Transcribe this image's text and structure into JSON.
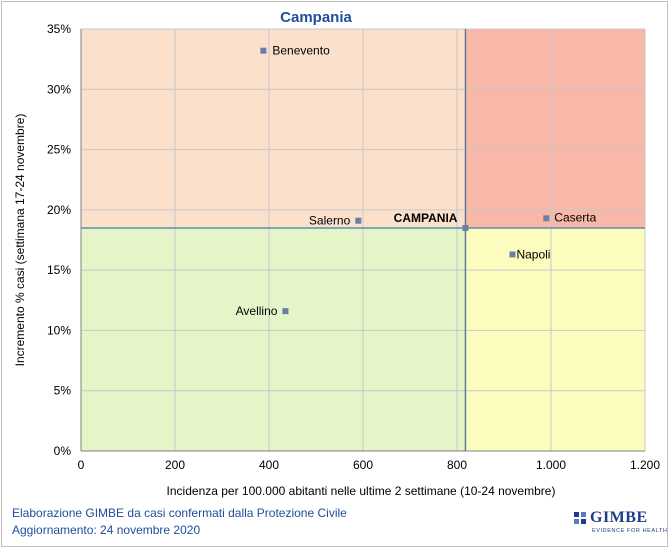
{
  "chart_data": {
    "type": "scatter",
    "title": "Campania",
    "xlabel": "Incidenza per 100.000 abitanti nelle ultime 2 settimane (10-24 novembre)",
    "ylabel": "Incremento % casi (settimana 17-24 novembre)",
    "xlim": [
      0,
      1200
    ],
    "ylim": [
      0,
      35
    ],
    "x_ticks": [
      0,
      200,
      400,
      600,
      800,
      1000,
      1200
    ],
    "x_tick_labels": [
      "0",
      "200",
      "400",
      "600",
      "800",
      "1.000",
      "1.200"
    ],
    "y_ticks": [
      0,
      5,
      10,
      15,
      20,
      25,
      30,
      35
    ],
    "y_tick_labels": [
      "0%",
      "5%",
      "10%",
      "15%",
      "20%",
      "25%",
      "30%",
      "35%"
    ],
    "grid": true,
    "reference_point": {
      "label": "CAMPANIA",
      "x": 818,
      "y": 18.5
    },
    "quadrant_colors": {
      "top_left": "#fbe0cc",
      "top_right": "#f9b7a8",
      "bottom_left": "#e4f5c8",
      "bottom_right": "#fdfcbf"
    },
    "marker_color": "#6a7fa6",
    "points": [
      {
        "label": "Benevento",
        "x": 388,
        "y": 33.2
      },
      {
        "label": "Caserta",
        "x": 990,
        "y": 19.3
      },
      {
        "label": "Salerno",
        "x": 590,
        "y": 19.1
      },
      {
        "label": "Napoli",
        "x": 918,
        "y": 16.3
      },
      {
        "label": "Avellino",
        "x": 435,
        "y": 11.6
      }
    ]
  },
  "footer": {
    "line1": "Elaborazione GIMBE da casi confermati dalla Protezione Civile",
    "line2": "Aggiornamento: 24 novembre 2020"
  },
  "logo": {
    "name": "GIMBE",
    "tagline": "EVIDENCE FOR HEALTH"
  }
}
